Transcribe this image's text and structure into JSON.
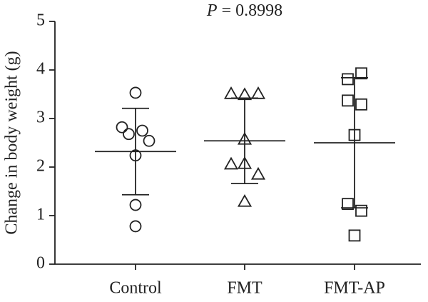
{
  "chart_data": {
    "type": "dotplot",
    "title": "P = 0.8998",
    "ylabel": "Change in body weight (g)",
    "categories": [
      "Control",
      "FMT",
      "FMT-AP"
    ],
    "markers": [
      "circle",
      "triangle",
      "square"
    ],
    "values": [
      [
        3.53,
        2.82,
        2.68,
        2.75,
        2.54,
        2.24,
        1.22,
        0.78
      ],
      [
        3.51,
        3.49,
        3.51,
        2.57,
        2.06,
        2.07,
        1.85,
        1.29
      ],
      [
        3.81,
        3.93,
        3.37,
        3.29,
        2.66,
        1.24,
        1.1,
        0.59
      ]
    ],
    "mean": [
      2.32,
      2.54,
      2.5
    ],
    "sd": [
      0.89,
      0.88,
      1.34
    ],
    "ylim": [
      0,
      5
    ],
    "yticks": [
      0,
      1,
      2,
      3,
      4,
      5
    ],
    "color": "#222222"
  }
}
